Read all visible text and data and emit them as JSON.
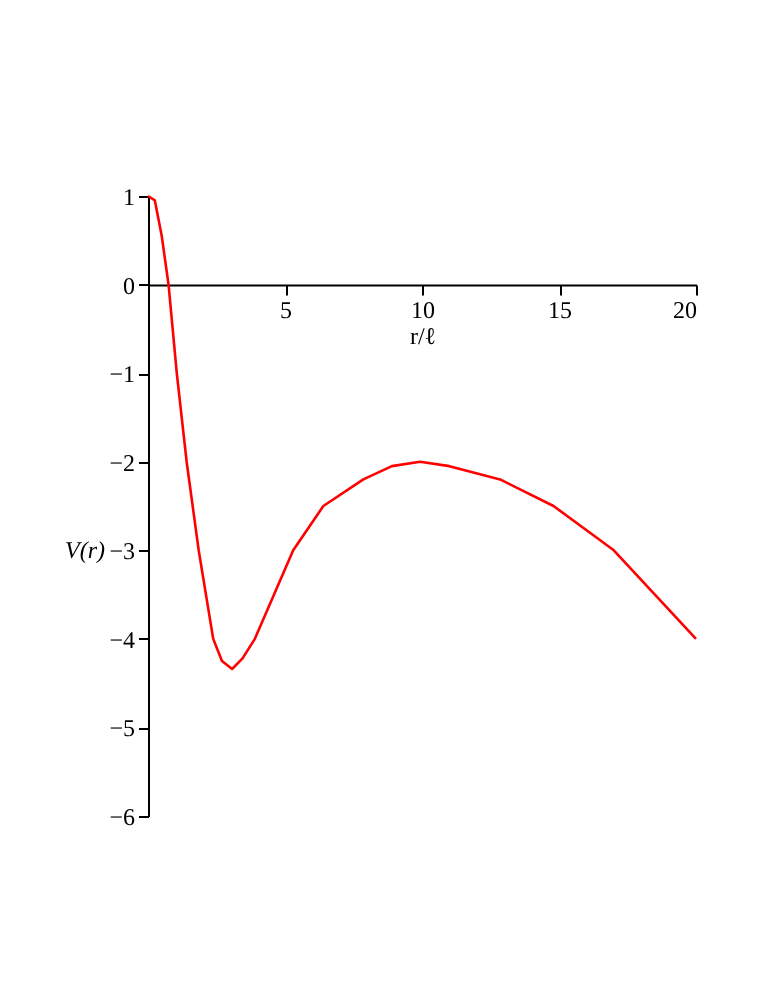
{
  "chart_data": {
    "type": "line",
    "xlabel": "r/ℓ",
    "ylabel": "V(r)",
    "xlim": [
      0,
      20
    ],
    "ylim": [
      -6,
      1
    ],
    "xticks": [
      5,
      10,
      15,
      20
    ],
    "yticks": [
      -6,
      -5,
      -4,
      -3,
      -2,
      -1,
      0,
      1
    ],
    "grid": false,
    "marker": "none",
    "line_style": "solid",
    "series": [
      {
        "color": "#ff0000",
        "x": [
          0,
          0.25,
          0.5,
          0.75,
          1.05,
          1.41,
          1.85,
          2.38,
          2.7,
          3.07,
          3.45,
          3.9,
          4.6,
          5.3,
          6.4,
          7.86,
          8.9,
          9.93,
          11.0,
          12.85,
          14.8,
          17.0,
          18.5,
          20
        ],
        "values": [
          1,
          0.95,
          0.55,
          0,
          -1,
          -2,
          -3,
          -4,
          -4.25,
          -4.34,
          -4.22,
          -4,
          -3.5,
          -3,
          -2.5,
          -2.2,
          -2.05,
          -2,
          -2.05,
          -2.2,
          -2.5,
          -3,
          -3.5,
          -4
        ]
      }
    ]
  }
}
